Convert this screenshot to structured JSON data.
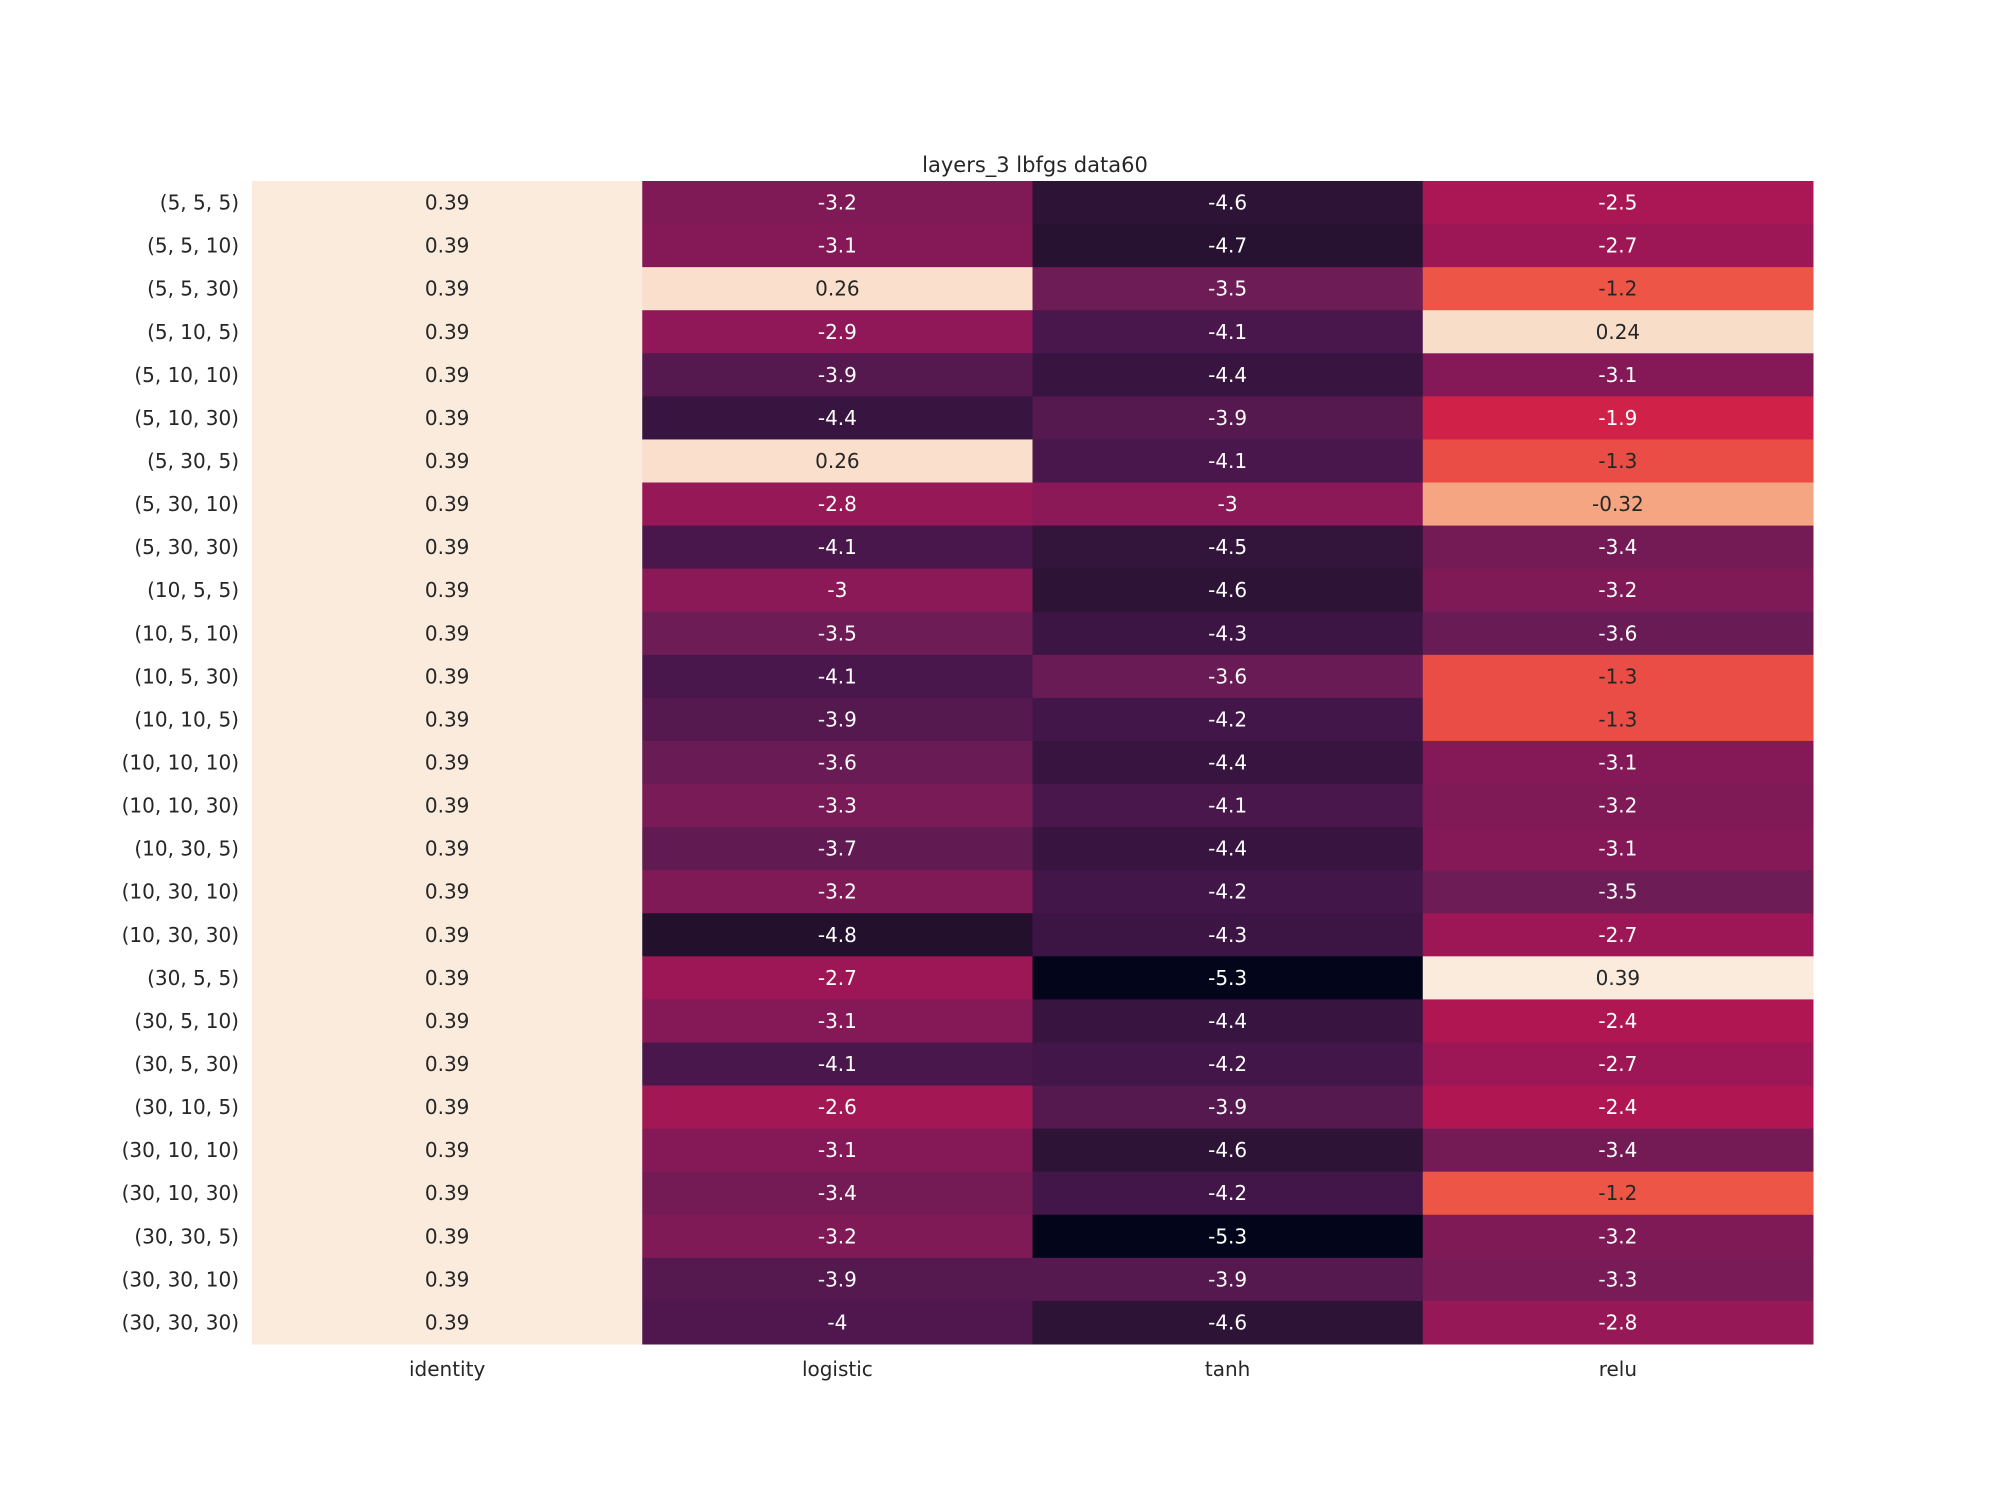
{
  "chart_data": {
    "type": "heatmap",
    "title": "layers_3 lbfgs data60",
    "xlabel": "",
    "ylabel": "",
    "colormap": "rocket",
    "colorbar": false,
    "vmin": -5.3,
    "vmax": 0.39,
    "columns": [
      "identity",
      "logistic",
      "tanh",
      "relu"
    ],
    "rows": [
      "(5, 5, 5)",
      "(5, 5, 10)",
      "(5, 5, 30)",
      "(5, 10, 5)",
      "(5, 10, 10)",
      "(5, 10, 30)",
      "(5, 30, 5)",
      "(5, 30, 10)",
      "(5, 30, 30)",
      "(10, 5, 5)",
      "(10, 5, 10)",
      "(10, 5, 30)",
      "(10, 10, 5)",
      "(10, 10, 10)",
      "(10, 10, 30)",
      "(10, 30, 5)",
      "(10, 30, 10)",
      "(10, 30, 30)",
      "(30, 5, 5)",
      "(30, 5, 10)",
      "(30, 5, 30)",
      "(30, 10, 5)",
      "(30, 10, 10)",
      "(30, 10, 30)",
      "(30, 30, 5)",
      "(30, 30, 10)",
      "(30, 30, 30)"
    ],
    "values": [
      [
        0.39,
        -3.2,
        -4.6,
        -2.5
      ],
      [
        0.39,
        -3.1,
        -4.7,
        -2.7
      ],
      [
        0.39,
        0.26,
        -3.5,
        -1.2
      ],
      [
        0.39,
        -2.9,
        -4.1,
        0.24
      ],
      [
        0.39,
        -3.9,
        -4.4,
        -3.1
      ],
      [
        0.39,
        -4.4,
        -3.9,
        -1.9
      ],
      [
        0.39,
        0.26,
        -4.1,
        -1.3
      ],
      [
        0.39,
        -2.8,
        -3,
        -0.32
      ],
      [
        0.39,
        -4.1,
        -4.5,
        -3.4
      ],
      [
        0.39,
        -3,
        -4.6,
        -3.2
      ],
      [
        0.39,
        -3.5,
        -4.3,
        -3.6
      ],
      [
        0.39,
        -4.1,
        -3.6,
        -1.3
      ],
      [
        0.39,
        -3.9,
        -4.2,
        -1.3
      ],
      [
        0.39,
        -3.6,
        -4.4,
        -3.1
      ],
      [
        0.39,
        -3.3,
        -4.1,
        -3.2
      ],
      [
        0.39,
        -3.7,
        -4.4,
        -3.1
      ],
      [
        0.39,
        -3.2,
        -4.2,
        -3.5
      ],
      [
        0.39,
        -4.8,
        -4.3,
        -2.7
      ],
      [
        0.39,
        -2.7,
        -5.3,
        0.39
      ],
      [
        0.39,
        -3.1,
        -4.4,
        -2.4
      ],
      [
        0.39,
        -4.1,
        -4.2,
        -2.7
      ],
      [
        0.39,
        -2.6,
        -3.9,
        -2.4
      ],
      [
        0.39,
        -3.1,
        -4.6,
        -3.4
      ],
      [
        0.39,
        -3.4,
        -4.2,
        -1.2
      ],
      [
        0.39,
        -3.2,
        -5.3,
        -3.2
      ],
      [
        0.39,
        -3.9,
        -3.9,
        -3.3
      ],
      [
        0.39,
        -4,
        -4.6,
        -2.8
      ]
    ]
  }
}
